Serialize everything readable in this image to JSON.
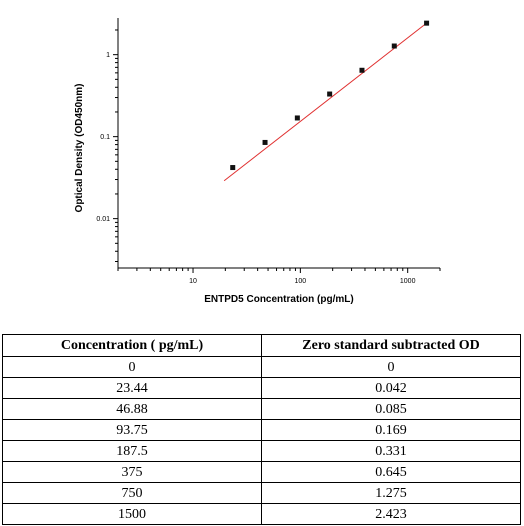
{
  "chart_data": {
    "type": "scatter",
    "xlabel": "ENTPD5 Concentration (pg/mL)",
    "ylabel": "Optical Density (OD450nm)",
    "x_scale": "log",
    "y_scale": "log",
    "xlim": [
      2,
      2000
    ],
    "ylim": [
      0.0025,
      2.8
    ],
    "x_ticks": [
      {
        "value": 10,
        "label": "10"
      },
      {
        "value": 100,
        "label": "100"
      },
      {
        "value": 1000,
        "label": "1000"
      }
    ],
    "y_ticks": [
      {
        "value": 0.01,
        "label": "0.01"
      },
      {
        "value": 0.1,
        "label": "0.1"
      },
      {
        "value": 1,
        "label": "1"
      }
    ],
    "series": [
      {
        "x": [
          23.44,
          46.88,
          93.75,
          187.5,
          375,
          750,
          1500
        ],
        "y": [
          0.042,
          0.085,
          0.169,
          0.331,
          0.645,
          1.275,
          2.423
        ]
      }
    ],
    "fit_line": {
      "x": [
        19.5,
        1500
      ],
      "y": [
        0.029,
        2.423
      ]
    },
    "colors": {
      "points": "#111111",
      "fit_line": "#e03030",
      "axis": "#000000"
    }
  },
  "table": {
    "headers": [
      "Concentration ( pg/mL)",
      "Zero standard subtracted OD"
    ],
    "rows": [
      [
        "0",
        "0"
      ],
      [
        "23.44",
        "0.042"
      ],
      [
        "46.88",
        "0.085"
      ],
      [
        "93.75",
        "0.169"
      ],
      [
        "187.5",
        "0.331"
      ],
      [
        "375",
        "0.645"
      ],
      [
        "750",
        "1.275"
      ],
      [
        "1500",
        "2.423"
      ]
    ]
  }
}
